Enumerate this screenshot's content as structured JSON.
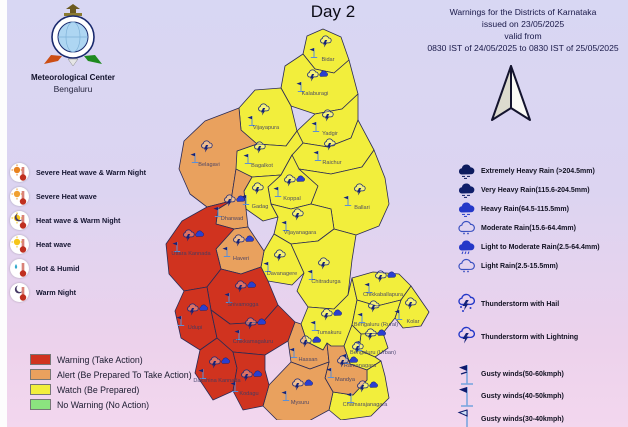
{
  "header": {
    "day_title": "Day 2",
    "org_name": "Meteorological Center",
    "org_city": "Bengaluru",
    "warning_lines": [
      "Warnings for the Districts of Karnataka",
      "issued on 23/05/2025",
      "valid from",
      "0830 IST of 24/05/2025 to 0830 IST of 25/05/2025"
    ]
  },
  "heat_legend": {
    "items": [
      {
        "label": "Severe Heat wave & Warm Night",
        "icon": "thermometer-sun-deep-icon"
      },
      {
        "label": "Severe Heat wave",
        "icon": "thermometer-sun-icon"
      },
      {
        "label": "Heat wave & Warm Night",
        "icon": "thermometer-sun-moon-icon"
      },
      {
        "label": "Heat wave",
        "icon": "thermometer-sun-yellow-icon"
      },
      {
        "label": "Hot & Humid",
        "icon": "thermometer-drop-icon"
      },
      {
        "label": "Warm Night",
        "icon": "thermometer-moon-icon"
      }
    ]
  },
  "level_legend": {
    "items": [
      {
        "level": "warning",
        "label": "Warning (Take Action)",
        "color": "#d0331f"
      },
      {
        "level": "alert",
        "label": "Alert (Be Prepared To Take Action)",
        "color": "#e9a15e"
      },
      {
        "level": "watch",
        "label": "Watch (Be Prepared)",
        "color": "#f2ee3c"
      },
      {
        "level": "nowarning",
        "label": "No Warning (No Action)",
        "color": "#8be37f"
      }
    ]
  },
  "rain_legend": {
    "items": [
      {
        "label": "Extremely Heavy Rain (>204.5mm)",
        "icon": "cloud-extremely-heavy-icon"
      },
      {
        "label": "Very Heavy Rain(115.6-204.5mm)",
        "icon": "cloud-very-heavy-icon"
      },
      {
        "label": "Heavy Rain(64.5-115.5mm)",
        "icon": "cloud-heavy-icon"
      },
      {
        "label": "Moderate Rain(15.6-64.4mm)",
        "icon": "cloud-moderate-icon"
      },
      {
        "label": "Light to Moderate Rain(2.5-64.4mm)",
        "icon": "cloud-light-moderate-icon"
      },
      {
        "label": "Light Rain(2.5-15.5mm)",
        "icon": "cloud-light-icon"
      },
      {
        "label": "Thunderstorm with Hail",
        "icon": "thunderstorm-hail-icon"
      },
      {
        "label": "Thunderstorm with Lightning",
        "icon": "thunderstorm-lightning-icon"
      },
      {
        "label": "Gusty winds(50-60kmph)",
        "icon": "wind-barb-50-icon"
      },
      {
        "label": "Gusty winds(40-50kmph)",
        "icon": "wind-barb-40-icon"
      },
      {
        "label": "Gusty winds(30-40kmph)",
        "icon": "wind-barb-30-icon"
      }
    ]
  },
  "map": {
    "border_color": "#2a2a55",
    "districts": [
      {
        "id": "bidar",
        "name": "Bidar",
        "level": "watch",
        "icons": [
          "thunderstorm-lightning",
          "gusty-wind"
        ]
      },
      {
        "id": "kalaburagi",
        "name": "Kalaburagi",
        "level": "watch",
        "icons": [
          "thunderstorm-lightning",
          "gusty-wind",
          "rain"
        ]
      },
      {
        "id": "vijayapura",
        "name": "Vijayapura",
        "level": "watch",
        "icons": [
          "thunderstorm-lightning",
          "gusty-wind"
        ]
      },
      {
        "id": "yadgir",
        "name": "Yadgir",
        "level": "watch",
        "icons": [
          "thunderstorm-lightning",
          "gusty-wind"
        ]
      },
      {
        "id": "raichur",
        "name": "Raichur",
        "level": "watch",
        "icons": [
          "thunderstorm-lightning",
          "gusty-wind"
        ]
      },
      {
        "id": "bagalkot",
        "name": "Bagalkot",
        "level": "watch",
        "icons": [
          "thunderstorm-lightning",
          "gusty-wind"
        ]
      },
      {
        "id": "koppal",
        "name": "Koppal",
        "level": "watch",
        "icons": [
          "thunderstorm-lightning",
          "gusty-wind",
          "rain"
        ]
      },
      {
        "id": "gadag",
        "name": "Gadag",
        "level": "watch",
        "icons": [
          "thunderstorm-lightning",
          "gusty-wind"
        ]
      },
      {
        "id": "ballari",
        "name": "Ballari",
        "level": "watch",
        "icons": [
          "thunderstorm-lightning",
          "gusty-wind"
        ]
      },
      {
        "id": "vijayanagara",
        "name": "Vijayanagara",
        "level": "watch",
        "icons": [
          "thunderstorm-lightning",
          "gusty-wind"
        ]
      },
      {
        "id": "davanagere",
        "name": "Davanagere",
        "level": "watch",
        "icons": [
          "thunderstorm-lightning",
          "gusty-wind"
        ]
      },
      {
        "id": "chitradurga",
        "name": "Chitradurga",
        "level": "watch",
        "icons": [
          "thunderstorm-lightning",
          "gusty-wind"
        ]
      },
      {
        "id": "tumakuru",
        "name": "Tumakuru",
        "level": "watch",
        "icons": [
          "thunderstorm-lightning",
          "gusty-wind",
          "rain"
        ]
      },
      {
        "id": "chikkaballapura",
        "name": "Chikkaballapura",
        "level": "watch",
        "icons": [
          "thunderstorm-lightning",
          "gusty-wind",
          "rain"
        ]
      },
      {
        "id": "kolar",
        "name": "Kolar",
        "level": "watch",
        "icons": [
          "thunderstorm-lightning",
          "gusty-wind"
        ]
      },
      {
        "id": "bengaluru-rural",
        "name": "Bengaluru (Rural)",
        "level": "watch",
        "icons": [
          "thunderstorm-lightning",
          "gusty-wind"
        ]
      },
      {
        "id": "bengaluru-urban",
        "name": "Bengaluru (Urban)",
        "level": "watch",
        "icons": [
          "thunderstorm-lightning",
          "gusty-wind",
          "rain"
        ]
      },
      {
        "id": "ramanagara",
        "name": "Ramanagara",
        "level": "watch",
        "icons": [
          "thunderstorm-lightning",
          "gusty-wind"
        ]
      },
      {
        "id": "chamarajanagara",
        "name": "Chamarajanagara",
        "level": "watch",
        "icons": [
          "thunderstorm-lightning",
          "gusty-wind",
          "rain"
        ]
      },
      {
        "id": "belagavi",
        "name": "Belagavi",
        "level": "alert",
        "icons": [
          "thunderstorm-lightning",
          "gusty-wind"
        ]
      },
      {
        "id": "dharwad",
        "name": "Dharwad",
        "level": "alert",
        "icons": [
          "thunderstorm-lightning",
          "gusty-wind",
          "rain"
        ]
      },
      {
        "id": "haveri",
        "name": "Haveri",
        "level": "alert",
        "icons": [
          "thunderstorm-lightning",
          "gusty-wind",
          "rain"
        ]
      },
      {
        "id": "hassan",
        "name": "Hassan",
        "level": "alert",
        "icons": [
          "thunderstorm-lightning",
          "gusty-wind",
          "rain"
        ]
      },
      {
        "id": "mandya",
        "name": "Mandya",
        "level": "alert",
        "icons": [
          "thunderstorm-lightning",
          "gusty-wind",
          "rain"
        ]
      },
      {
        "id": "mysuru",
        "name": "Mysuru",
        "level": "alert",
        "icons": [
          "thunderstorm-lightning",
          "gusty-wind",
          "rain"
        ]
      },
      {
        "id": "uttara-kannada",
        "name": "Uttara Kannada",
        "level": "warning",
        "icons": [
          "thunderstorm-lightning",
          "gusty-wind",
          "rain"
        ]
      },
      {
        "id": "shivamogga",
        "name": "Shivamogga",
        "level": "warning",
        "icons": [
          "thunderstorm-lightning",
          "gusty-wind",
          "rain"
        ]
      },
      {
        "id": "udupi",
        "name": "Udupi",
        "level": "warning",
        "icons": [
          "thunderstorm-lightning",
          "gusty-wind",
          "rain"
        ]
      },
      {
        "id": "chikkamagaluru",
        "name": "Chikkamagaluru",
        "level": "warning",
        "icons": [
          "thunderstorm-lightning",
          "gusty-wind",
          "rain"
        ]
      },
      {
        "id": "dakshina-kannada",
        "name": "Dakshina Kannada",
        "level": "warning",
        "icons": [
          "thunderstorm-lightning",
          "gusty-wind",
          "rain"
        ]
      },
      {
        "id": "kodagu",
        "name": "Kodagu",
        "level": "warning",
        "icons": [
          "thunderstorm-lightning",
          "gusty-wind",
          "rain"
        ]
      }
    ]
  },
  "icons": {
    "compass": "north-arrow-icon",
    "logo": "imd-emblem-icon"
  }
}
